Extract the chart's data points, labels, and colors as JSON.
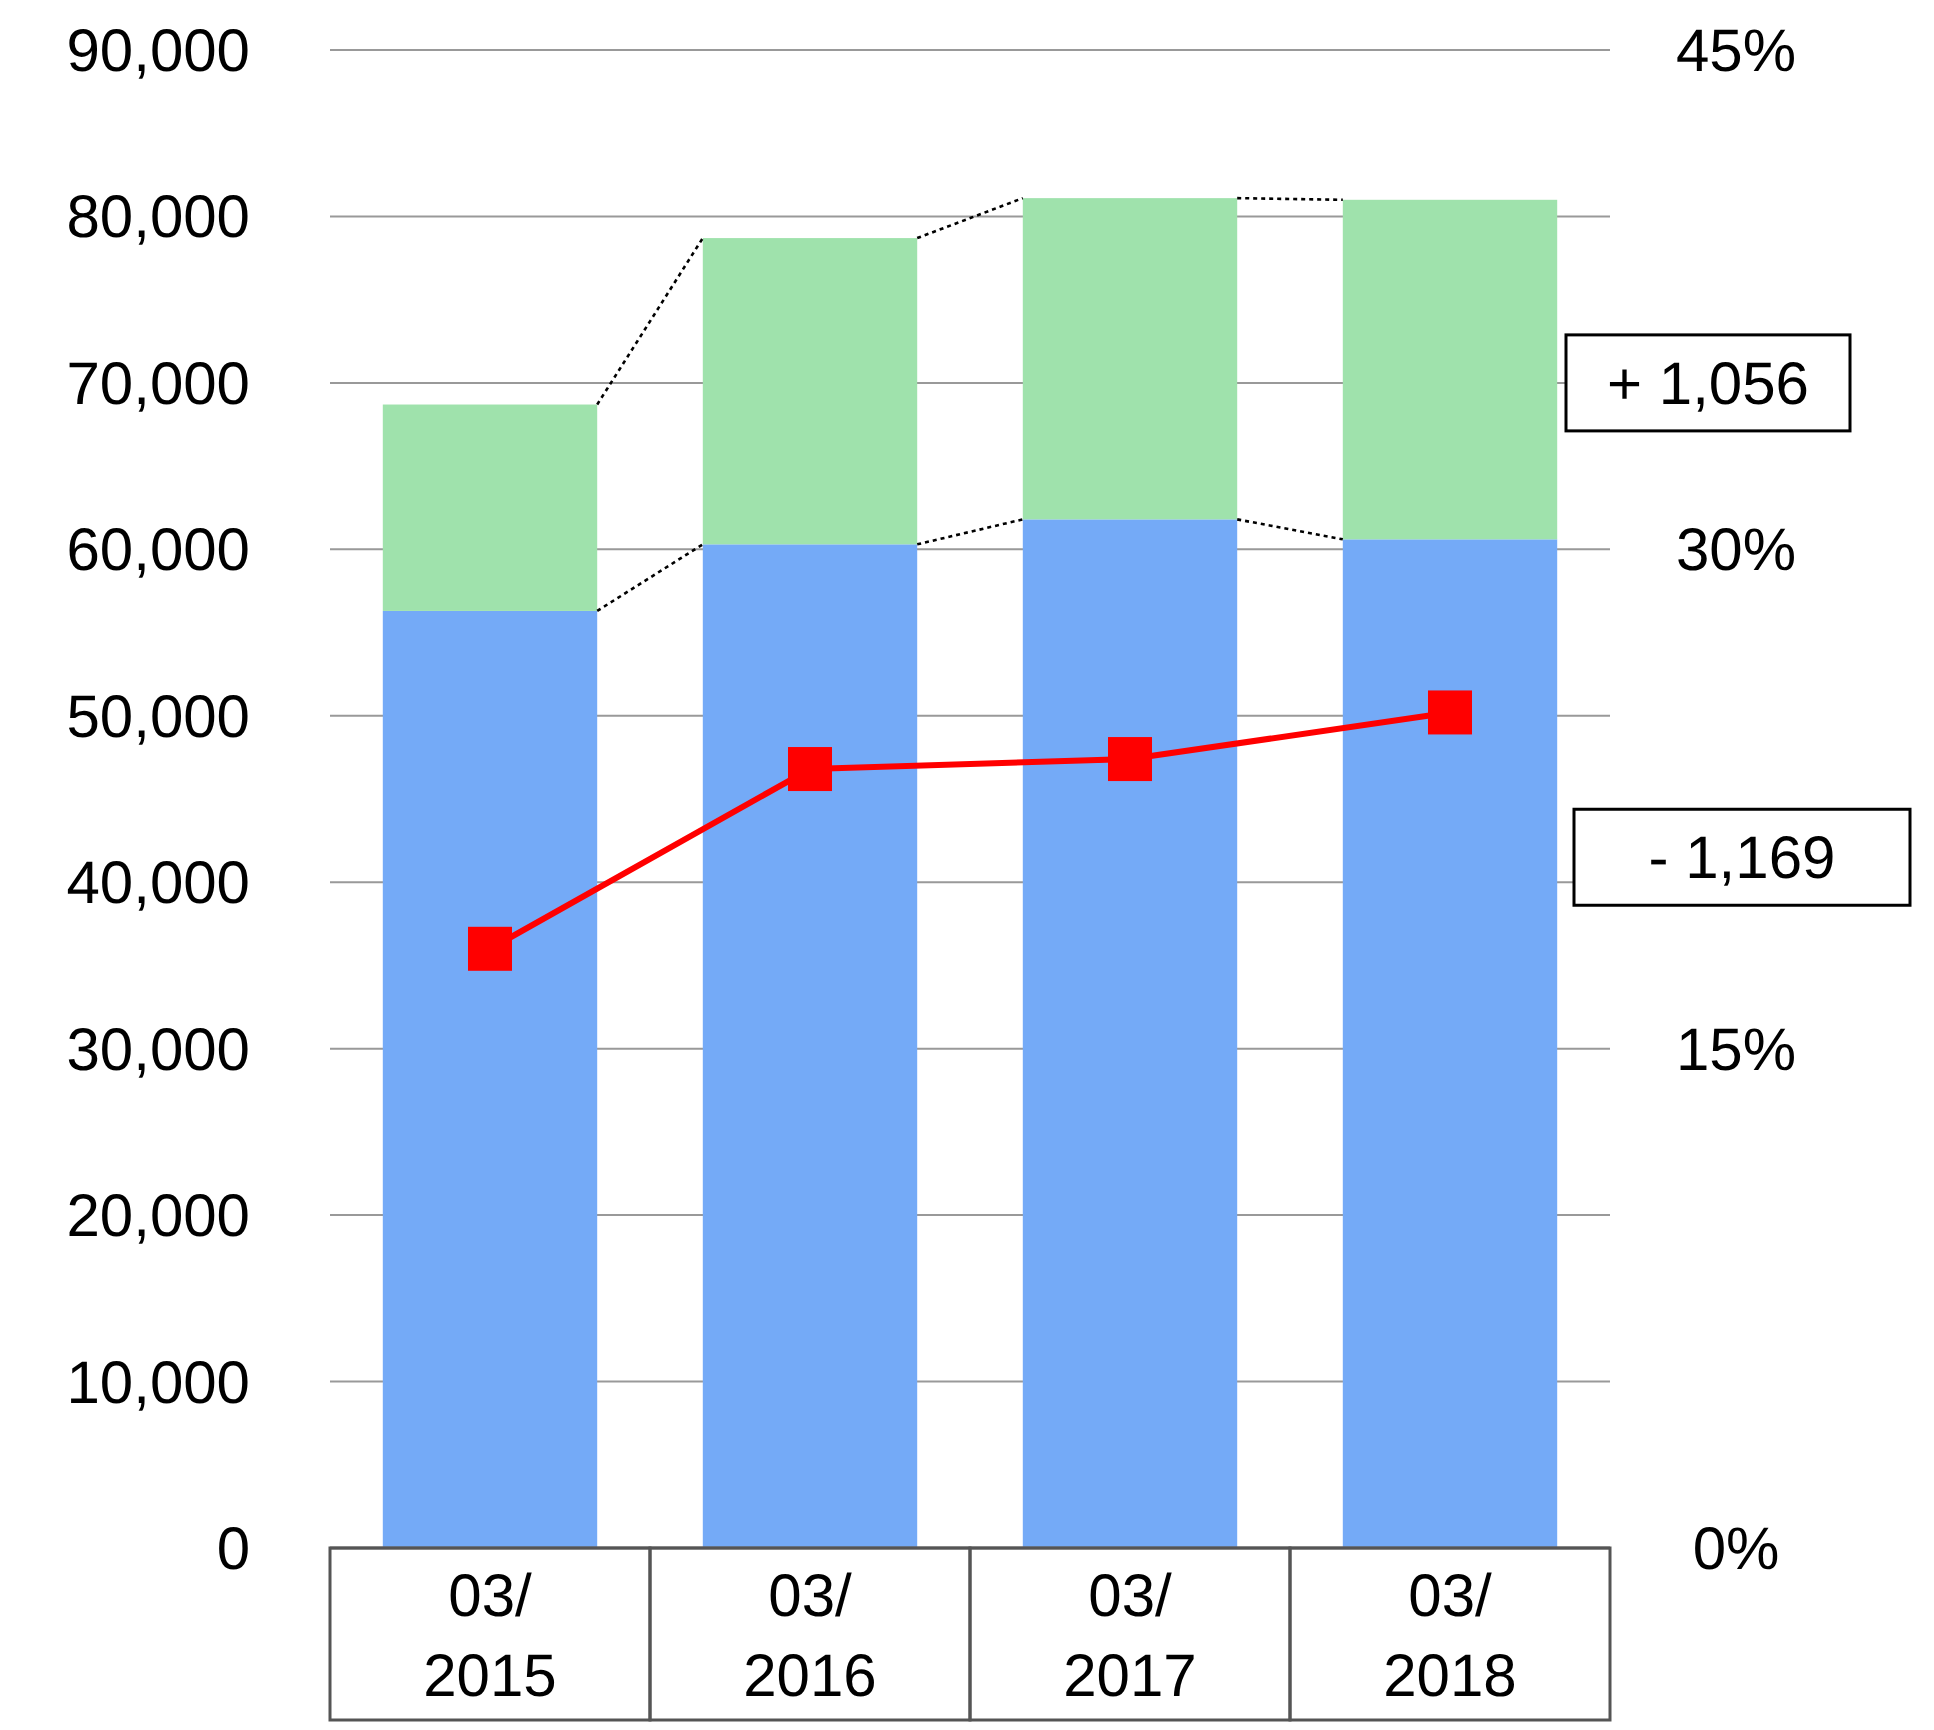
{
  "chart_data": {
    "type": "bar",
    "stacked": true,
    "categories": [
      "03/2015",
      "03/2016",
      "03/2017",
      "03/2018"
    ],
    "series": [
      {
        "color": "#74aaf7",
        "values": [
          56300,
          60300,
          61800,
          60600
        ]
      },
      {
        "color": "#9fe2ac",
        "values": [
          12400,
          18400,
          19300,
          20400
        ]
      },
      {
        "type": "line",
        "axis": "y2",
        "color": "#ff0000",
        "marker": "square",
        "values": [
          18.0,
          23.4,
          23.7,
          25.1
        ]
      }
    ],
    "ylim": [
      0,
      90000
    ],
    "yticks": [
      {
        "value": 0,
        "label": "0"
      },
      {
        "value": 10000,
        "label": "10,000"
      },
      {
        "value": 20000,
        "label": "20,000"
      },
      {
        "value": 30000,
        "label": "30,000"
      },
      {
        "value": 40000,
        "label": "40,000"
      },
      {
        "value": 50000,
        "label": "50,000"
      },
      {
        "value": 60000,
        "label": "60,000"
      },
      {
        "value": 70000,
        "label": "70,000"
      },
      {
        "value": 80000,
        "label": "80,000"
      },
      {
        "value": 90000,
        "label": "90,000"
      }
    ],
    "y2lim": [
      0,
      45
    ],
    "y2ticks": [
      {
        "value": 0,
        "label": "0%"
      },
      {
        "value": 15,
        "label": "15%"
      },
      {
        "value": 30,
        "label": "30%"
      },
      {
        "value": 45,
        "label": "45%"
      }
    ],
    "grid": "y",
    "annotations": [
      "+ 1,056",
      "- 1,169"
    ]
  }
}
